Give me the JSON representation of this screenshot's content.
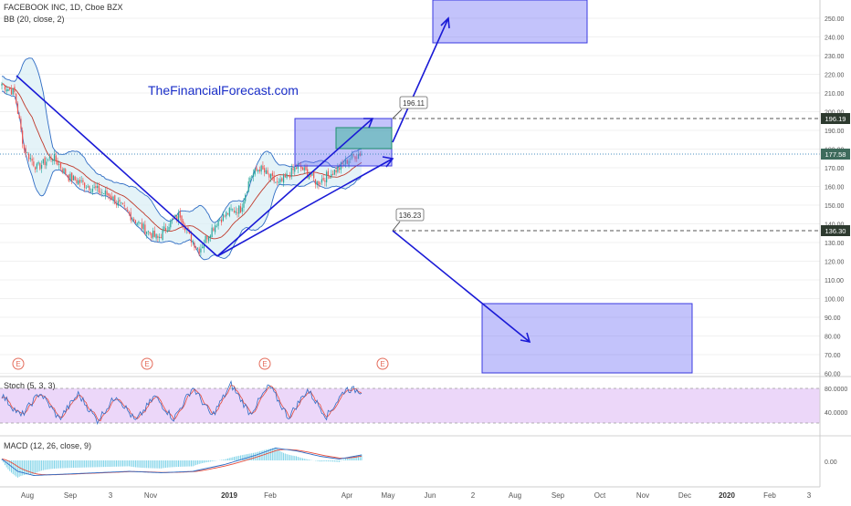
{
  "header": {
    "title": "FACEBOOK INC, 1D, Cboe BZX",
    "indicator": "BB (20, close, 2)",
    "watermark": "TheFinancialForecast.com"
  },
  "colors": {
    "up": "#26a69a",
    "down": "#ef5350",
    "arrow": "#1a1ad6",
    "box_blue": "#6f6ff5",
    "box_green": "#2bb58f",
    "bb_band": "#2f6cc4",
    "bb_mid": "#c0392b",
    "stoch_fill": "#e6c9f7",
    "stoch_k": "#2f6cc4",
    "stoch_d": "#e74c3c",
    "macd_hist": "#7fd3e8",
    "macd_signal": "#e74c3c"
  },
  "price_axis": {
    "ticks": [
      "250.00",
      "240.00",
      "230.00",
      "220.00",
      "210.00",
      "200.00",
      "190.00",
      "180.00",
      "170.00",
      "160.00",
      "150.00",
      "140.00",
      "130.00",
      "120.00",
      "110.00",
      "100.00",
      "90.00",
      "80.00",
      "70.00",
      "60.00"
    ],
    "levels": [
      {
        "value": 196.19,
        "label": "196.19",
        "style": "dashed",
        "tag": "#2d3a2f"
      },
      {
        "value": 177.58,
        "label": "177.58",
        "style": "dotted",
        "tag": "#3e6b5c"
      },
      {
        "value": 136.3,
        "label": "136.30",
        "style": "dashed",
        "tag": "#2d3a2f"
      }
    ]
  },
  "callouts": [
    {
      "label": "196.11"
    },
    {
      "label": "136.23"
    }
  ],
  "earnings": {
    "marker": "E"
  },
  "time_axis": {
    "ticks": [
      "Aug",
      "Sep",
      "3",
      "Nov",
      "2019",
      "Feb",
      "Apr",
      "May",
      "Jun",
      "2",
      "Aug",
      "Sep",
      "Oct",
      "Nov",
      "Dec",
      "2020",
      "Feb",
      "3"
    ]
  },
  "stoch": {
    "label": "Stoch (5, 3, 3)",
    "ticks": [
      "80.0000",
      "40.0000"
    ]
  },
  "macd": {
    "label": "MACD (12, 26, close, 9)",
    "ticks": [
      "0.00"
    ]
  },
  "chart_data": {
    "type": "candlestick",
    "title": "FACEBOOK INC, 1D, Cboe BZX",
    "ylim": [
      60,
      255
    ],
    "current_price": 177.58,
    "levels": [
      196.19,
      177.58,
      136.3
    ],
    "anchors": [
      {
        "t": 0,
        "p": 215
      },
      {
        "t": 8,
        "p": 210
      },
      {
        "t": 14,
        "p": 180
      },
      {
        "t": 22,
        "p": 170
      },
      {
        "t": 32,
        "p": 176
      },
      {
        "t": 42,
        "p": 165
      },
      {
        "t": 55,
        "p": 160
      },
      {
        "t": 68,
        "p": 155
      },
      {
        "t": 80,
        "p": 145
      },
      {
        "t": 90,
        "p": 137
      },
      {
        "t": 98,
        "p": 132
      },
      {
        "t": 105,
        "p": 140
      },
      {
        "t": 112,
        "p": 145
      },
      {
        "t": 118,
        "p": 133
      },
      {
        "t": 124,
        "p": 126
      },
      {
        "t": 130,
        "p": 135
      },
      {
        "t": 136,
        "p": 142
      },
      {
        "t": 144,
        "p": 147
      },
      {
        "t": 150,
        "p": 148
      },
      {
        "t": 156,
        "p": 165
      },
      {
        "t": 162,
        "p": 170
      },
      {
        "t": 168,
        "p": 165
      },
      {
        "t": 174,
        "p": 161
      },
      {
        "t": 180,
        "p": 166
      },
      {
        "t": 186,
        "p": 171
      },
      {
        "t": 192,
        "p": 167
      },
      {
        "t": 198,
        "p": 162
      },
      {
        "t": 205,
        "p": 166
      },
      {
        "t": 212,
        "p": 170
      },
      {
        "t": 220,
        "p": 176
      },
      {
        "t": 226,
        "p": 178
      }
    ],
    "stoch_k_anchors": [
      {
        "t": 0,
        "v": 70
      },
      {
        "t": 12,
        "v": 30
      },
      {
        "t": 24,
        "v": 75
      },
      {
        "t": 36,
        "v": 25
      },
      {
        "t": 48,
        "v": 72
      },
      {
        "t": 60,
        "v": 22
      },
      {
        "t": 72,
        "v": 70
      },
      {
        "t": 84,
        "v": 20
      },
      {
        "t": 96,
        "v": 68
      },
      {
        "t": 108,
        "v": 25
      },
      {
        "t": 120,
        "v": 85
      },
      {
        "t": 132,
        "v": 30
      },
      {
        "t": 144,
        "v": 90
      },
      {
        "t": 156,
        "v": 35
      },
      {
        "t": 168,
        "v": 88
      },
      {
        "t": 180,
        "v": 28
      },
      {
        "t": 192,
        "v": 80
      },
      {
        "t": 204,
        "v": 30
      },
      {
        "t": 216,
        "v": 82
      },
      {
        "t": 226,
        "v": 78
      }
    ],
    "macd_anchors": [
      {
        "t": 0,
        "v": 1
      },
      {
        "t": 10,
        "v": -8
      },
      {
        "t": 20,
        "v": -11
      },
      {
        "t": 40,
        "v": -10
      },
      {
        "t": 60,
        "v": -9
      },
      {
        "t": 80,
        "v": -8
      },
      {
        "t": 100,
        "v": -9
      },
      {
        "t": 120,
        "v": -8
      },
      {
        "t": 140,
        "v": -3
      },
      {
        "t": 160,
        "v": 4
      },
      {
        "t": 172,
        "v": 9
      },
      {
        "t": 185,
        "v": 7
      },
      {
        "t": 200,
        "v": 3
      },
      {
        "t": 212,
        "v": 1
      },
      {
        "t": 226,
        "v": 4
      }
    ],
    "macd_range": [
      -14,
      14
    ]
  }
}
